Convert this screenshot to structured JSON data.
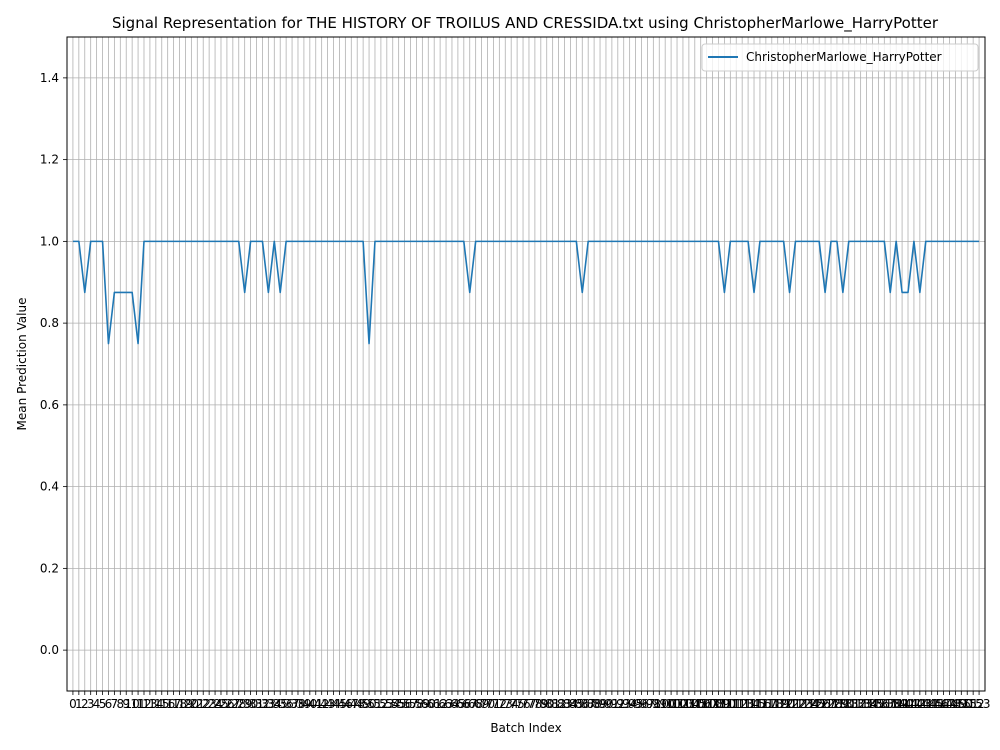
{
  "chart_data": {
    "type": "line",
    "title": "Signal Representation for THE HISTORY OF TROILUS AND CRESSIDA.txt using ChristopherMarlowe_HarryPotter",
    "xlabel": "Batch Index",
    "ylabel": "Mean Prediction Value",
    "xlim": [
      -1,
      154
    ],
    "ylim": [
      -0.1,
      1.5
    ],
    "yticks": [
      0.0,
      0.2,
      0.4,
      0.6,
      0.8,
      1.0,
      1.2,
      1.4
    ],
    "ytick_labels": [
      "0.0",
      "0.2",
      "0.4",
      "0.6",
      "0.8",
      "1.0",
      "1.2",
      "1.4"
    ],
    "x": [
      0,
      1,
      2,
      3,
      4,
      5,
      6,
      7,
      8,
      9,
      10,
      11,
      12,
      13,
      14,
      15,
      16,
      17,
      18,
      19,
      20,
      21,
      22,
      23,
      24,
      25,
      26,
      27,
      28,
      29,
      30,
      31,
      32,
      33,
      34,
      35,
      36,
      37,
      38,
      39,
      40,
      41,
      42,
      43,
      44,
      45,
      46,
      47,
      48,
      49,
      50,
      51,
      52,
      53,
      54,
      55,
      56,
      57,
      58,
      59,
      60,
      61,
      62,
      63,
      64,
      65,
      66,
      67,
      68,
      69,
      70,
      71,
      72,
      73,
      74,
      75,
      76,
      77,
      78,
      79,
      80,
      81,
      82,
      83,
      84,
      85,
      86,
      87,
      88,
      89,
      90,
      91,
      92,
      93,
      94,
      95,
      96,
      97,
      98,
      99,
      100,
      101,
      102,
      103,
      104,
      105,
      106,
      107,
      108,
      109,
      110,
      111,
      112,
      113,
      114,
      115,
      116,
      117,
      118,
      119,
      120,
      121,
      122,
      123,
      124,
      125,
      126,
      127,
      128,
      129,
      130,
      131,
      132,
      133,
      134,
      135,
      136,
      137,
      138,
      139,
      140,
      141,
      142,
      143,
      144,
      145,
      146,
      147,
      148,
      149,
      150,
      151,
      152,
      153
    ],
    "grid": true,
    "legend_position": "upper right",
    "series": [
      {
        "name": "ChristopherMarlowe_HarryPotter",
        "color": "#1f77b4",
        "values": [
          1,
          1,
          0.875,
          1,
          1,
          1,
          0.75,
          0.875,
          0.875,
          0.875,
          0.875,
          0.75,
          1,
          1,
          1,
          1,
          1,
          1,
          1,
          1,
          1,
          1,
          1,
          1,
          1,
          1,
          1,
          1,
          1,
          0.875,
          1,
          1,
          1,
          0.875,
          1,
          0.875,
          1,
          1,
          1,
          1,
          1,
          1,
          1,
          1,
          1,
          1,
          1,
          1,
          1,
          1,
          0.75,
          1,
          1,
          1,
          1,
          1,
          1,
          1,
          1,
          1,
          1,
          1,
          1,
          1,
          1,
          1,
          1,
          0.875,
          1,
          1,
          1,
          1,
          1,
          1,
          1,
          1,
          1,
          1,
          1,
          1,
          1,
          1,
          1,
          1,
          1,
          1,
          0.875,
          1,
          1,
          1,
          1,
          1,
          1,
          1,
          1,
          1,
          1,
          1,
          1,
          1,
          1,
          1,
          1,
          1,
          1,
          1,
          1,
          1,
          1,
          1,
          0.875,
          1,
          1,
          1,
          1,
          0.875,
          1,
          1,
          1,
          1,
          1,
          0.875,
          1,
          1,
          1,
          1,
          1,
          0.875,
          1,
          1,
          0.875,
          1,
          1,
          1,
          1,
          1,
          1,
          1,
          0.875,
          1,
          0.875,
          0.875,
          1,
          0.875,
          1,
          1,
          1,
          1,
          1,
          1,
          1,
          1,
          1,
          1
        ]
      }
    ]
  }
}
